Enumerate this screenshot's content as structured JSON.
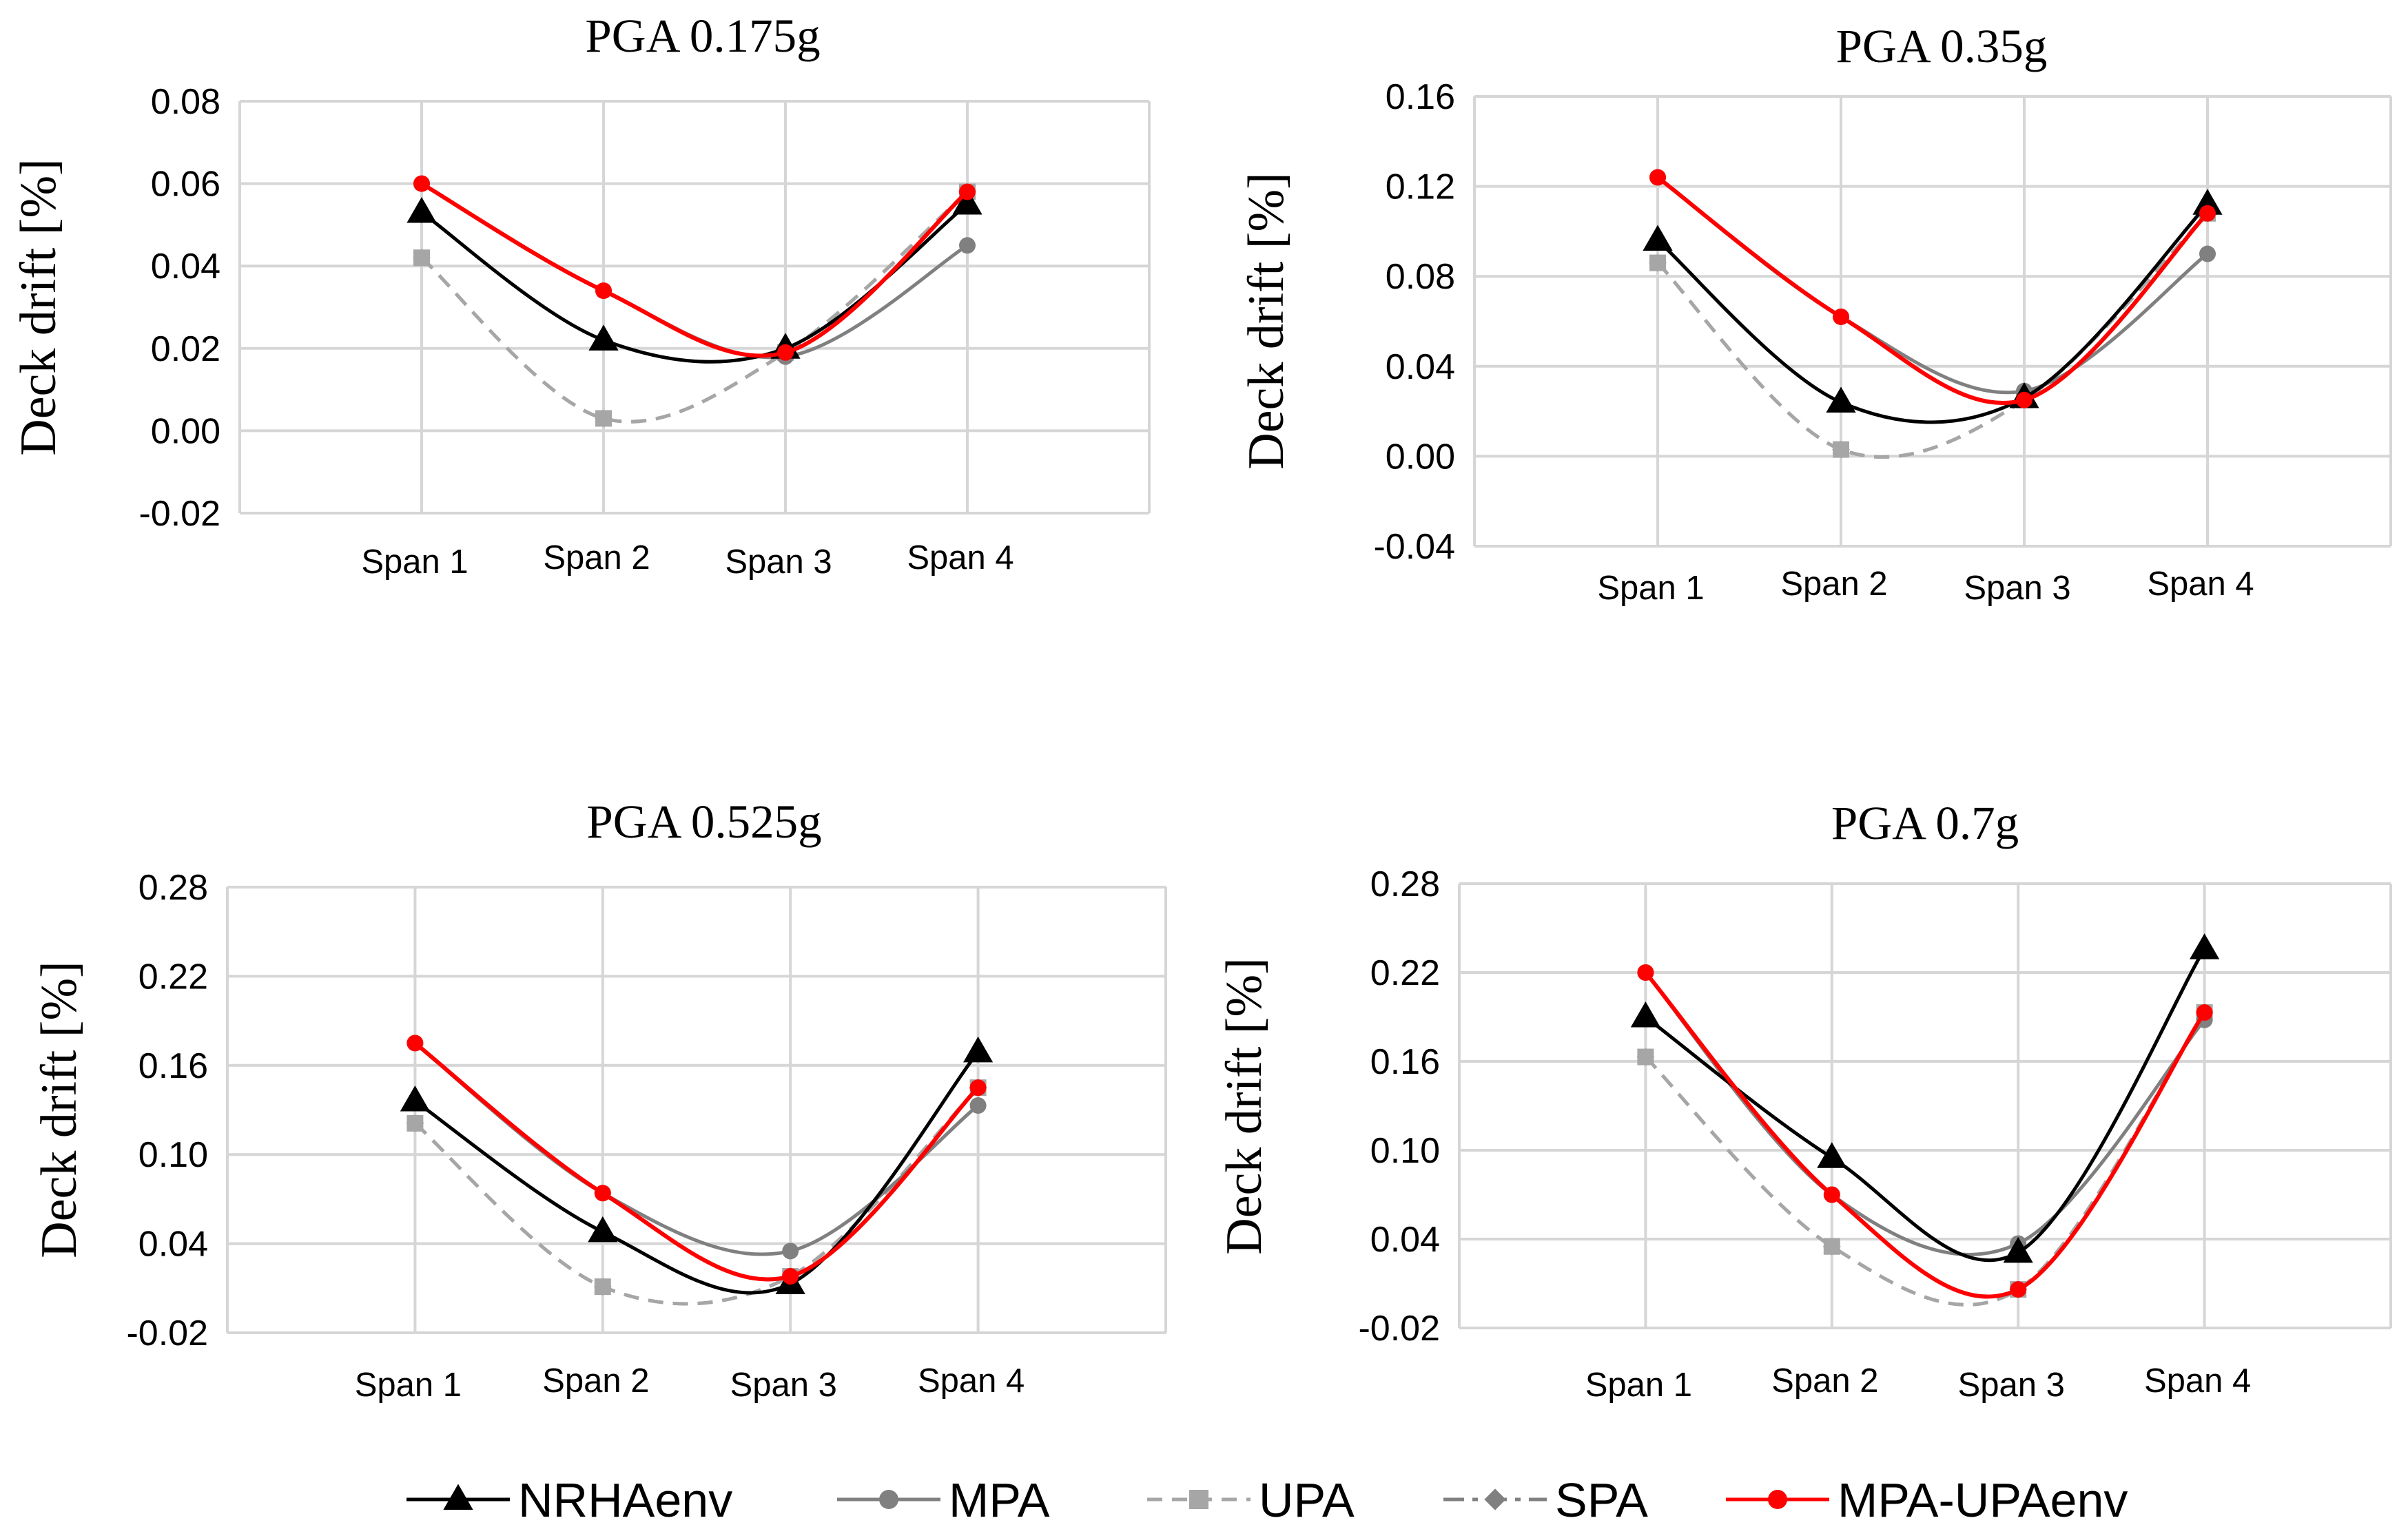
{
  "chart_data": [
    {
      "type": "line",
      "title": "PGA 0.175g",
      "ylabel": "Deck drift [%]",
      "categories": [
        "Span 1",
        "Span 2",
        "Span 3",
        "Span 4"
      ],
      "ylim": [
        -0.02,
        0.08
      ],
      "yticks": [
        "0.08",
        "0.06",
        "0.04",
        "0.02",
        "0.00",
        "-0.02"
      ],
      "series": [
        {
          "name": "NRHAenv",
          "values": [
            0.053,
            0.022,
            0.02,
            0.055
          ]
        },
        {
          "name": "MPA",
          "values": [
            0.06,
            0.034,
            0.018,
            0.045
          ]
        },
        {
          "name": "UPA",
          "values": [
            0.042,
            0.003,
            0.019,
            0.058
          ]
        },
        {
          "name": "SPA",
          "values": [
            0.042,
            0.003,
            0.019,
            0.058
          ]
        },
        {
          "name": "MPA-UPAenv",
          "values": [
            0.06,
            0.034,
            0.019,
            0.058
          ]
        }
      ]
    },
    {
      "type": "line",
      "title": "PGA 0.35g",
      "ylabel": "Deck drift [%]",
      "categories": [
        "Span 1",
        "Span 2",
        "Span 3",
        "Span 4"
      ],
      "ylim": [
        -0.04,
        0.16
      ],
      "yticks": [
        "0.16",
        "0.12",
        "0.08",
        "0.04",
        "0.00",
        "-0.04"
      ],
      "series": [
        {
          "name": "NRHAenv",
          "values": [
            0.096,
            0.024,
            0.026,
            0.112
          ]
        },
        {
          "name": "MPA",
          "values": [
            0.124,
            0.062,
            0.029,
            0.09
          ]
        },
        {
          "name": "UPA",
          "values": [
            0.086,
            0.003,
            0.025,
            0.108
          ]
        },
        {
          "name": "SPA",
          "values": [
            0.086,
            0.003,
            0.025,
            0.108
          ]
        },
        {
          "name": "MPA-UPAenv",
          "values": [
            0.124,
            0.062,
            0.025,
            0.108
          ]
        }
      ]
    },
    {
      "type": "line",
      "title": "PGA 0.525g",
      "ylabel": "Deck drift [%]",
      "categories": [
        "Span 1",
        "Span 2",
        "Span 3",
        "Span 4"
      ],
      "ylim": [
        -0.02,
        0.28
      ],
      "yticks": [
        "0.28",
        "0.22",
        "0.16",
        "0.10",
        "0.04",
        "-0.02"
      ],
      "series": [
        {
          "name": "NRHAenv",
          "values": [
            0.136,
            0.048,
            0.013,
            0.169
          ]
        },
        {
          "name": "MPA",
          "values": [
            0.175,
            0.074,
            0.035,
            0.133
          ]
        },
        {
          "name": "UPA",
          "values": [
            0.121,
            0.011,
            0.018,
            0.145
          ]
        },
        {
          "name": "SPA",
          "values": [
            0.121,
            0.011,
            0.018,
            0.145
          ]
        },
        {
          "name": "MPA-UPAenv",
          "values": [
            0.175,
            0.074,
            0.018,
            0.145
          ]
        }
      ]
    },
    {
      "type": "line",
      "title": "PGA 0.7g",
      "ylabel": "Deck drift [%]",
      "categories": [
        "Span 1",
        "Span 2",
        "Span 3",
        "Span 4"
      ],
      "ylim": [
        -0.02,
        0.28
      ],
      "yticks": [
        "0.28",
        "0.22",
        "0.16",
        "0.10",
        "0.04",
        "-0.02"
      ],
      "series": [
        {
          "name": "NRHAenv",
          "values": [
            0.19,
            0.095,
            0.031,
            0.236
          ]
        },
        {
          "name": "MPA",
          "values": [
            0.22,
            0.07,
            0.037,
            0.188
          ]
        },
        {
          "name": "UPA",
          "values": [
            0.163,
            0.035,
            0.006,
            0.193
          ]
        },
        {
          "name": "SPA",
          "values": [
            0.163,
            0.035,
            0.006,
            0.193
          ]
        },
        {
          "name": "MPA-UPAenv",
          "values": [
            0.22,
            0.07,
            0.006,
            0.193
          ]
        }
      ]
    }
  ],
  "legend": [
    {
      "name": "NRHAenv",
      "color": "#000000",
      "marker": "triangle",
      "dash": "solid"
    },
    {
      "name": "MPA",
      "color": "#808080",
      "marker": "circle",
      "dash": "solid"
    },
    {
      "name": "UPA",
      "color": "#a6a6a6",
      "marker": "square",
      "dash": "dashed"
    },
    {
      "name": "SPA",
      "color": "#808080",
      "marker": "diamond",
      "dash": "dashdot"
    },
    {
      "name": "MPA-UPAenv",
      "color": "#ff0000",
      "marker": "circle",
      "dash": "solid"
    }
  ]
}
